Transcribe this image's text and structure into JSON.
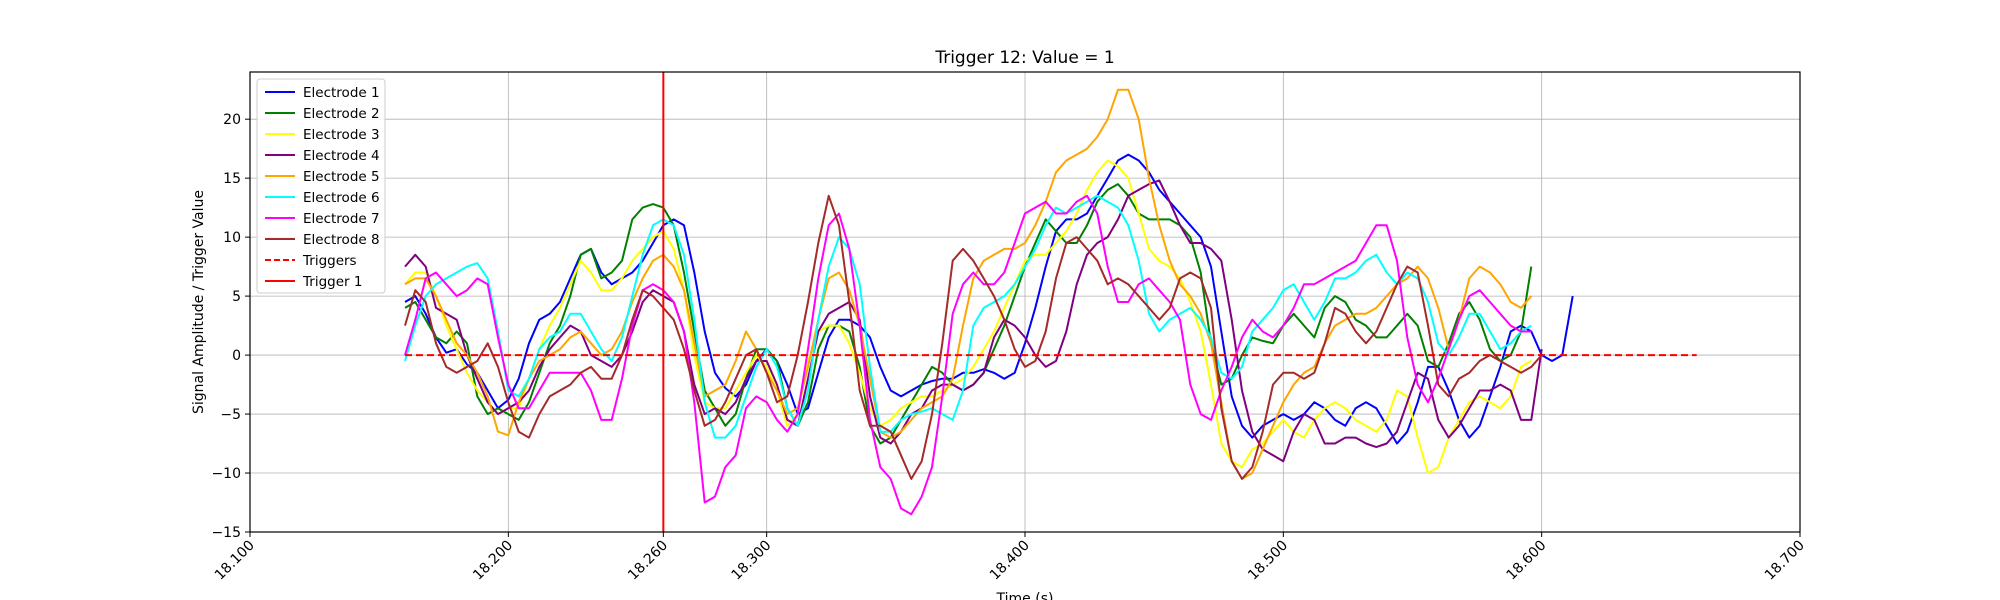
{
  "chart_data": {
    "type": "line",
    "title": "Trigger 12: Value = 1",
    "xlabel": "Time (s)",
    "ylabel": "Signal Amplitude / Trigger Value",
    "xlim": [
      18.1,
      18.7
    ],
    "ylim": [
      -15,
      24
    ],
    "x_ticks": [
      18.1,
      18.2,
      18.26,
      18.3,
      18.4,
      18.5,
      18.6,
      18.7
    ],
    "x_tick_labels": [
      "18.100",
      "18.200",
      "18.260",
      "18.300",
      "18.400",
      "18.500",
      "18.600",
      "18.700"
    ],
    "y_ticks": [
      -15,
      -10,
      -5,
      0,
      5,
      10,
      15,
      20
    ],
    "y_tick_labels": [
      "−15",
      "−10",
      "−5",
      "0",
      "5",
      "10",
      "15",
      "20"
    ],
    "grid": true,
    "legend_position": "upper-left",
    "x_start": 18.16,
    "x_step": 0.004,
    "series": [
      {
        "name": "Electrode 1",
        "color": "#0000ff",
        "values": [
          4.5,
          5.0,
          3.5,
          1.5,
          0.2,
          0.5,
          -0.8,
          -1.5,
          -3.0,
          -4.5,
          -3.8,
          -2.0,
          1.0,
          3.0,
          3.5,
          4.5,
          6.5,
          8.5,
          9.0,
          7.0,
          6.0,
          6.5,
          7.0,
          8.0,
          9.5,
          11.0,
          11.5,
          11.0,
          7.0,
          2.0,
          -1.5,
          -2.8,
          -3.5,
          -2.5,
          -0.5,
          0.5,
          -0.5,
          -2.5,
          -5.0,
          -4.5,
          -1.5,
          1.5,
          3.0,
          3.0,
          2.5,
          1.5,
          -1.0,
          -3.0,
          -3.5,
          -3.0,
          -2.5,
          -2.2,
          -2.0,
          -2.0,
          -1.5,
          -1.5,
          -1.2,
          -1.5,
          -2.0,
          -1.5,
          1.0,
          4.0,
          7.5,
          10.5,
          11.5,
          11.5,
          12.0,
          13.5,
          15.0,
          16.5,
          17.0,
          16.5,
          15.5,
          14.0,
          13.0,
          12.0,
          11.0,
          10.0,
          7.5,
          2.0,
          -3.5,
          -6.0,
          -7.0,
          -6.0,
          -5.5,
          -5.0,
          -5.5,
          -5.0,
          -4.0,
          -4.5,
          -5.5,
          -6.0,
          -4.5,
          -4.0,
          -4.5,
          -6.0,
          -7.5,
          -6.5,
          -4.0,
          -1.0,
          -1.0,
          -3.0,
          -5.5,
          -7.0,
          -6.0,
          -3.5,
          -1.0,
          2.0,
          2.5,
          2.0,
          0.0,
          -0.5,
          0.0,
          5.0
        ]
      },
      {
        "name": "Electrode 2",
        "color": "#008000",
        "values": [
          4.0,
          4.5,
          3.0,
          1.5,
          1.0,
          2.0,
          1.0,
          -3.5,
          -5.0,
          -4.5,
          -5.0,
          -5.5,
          -4.0,
          -1.5,
          1.0,
          2.5,
          5.0,
          8.5,
          9.0,
          6.5,
          7.0,
          8.0,
          11.5,
          12.5,
          12.8,
          12.5,
          11.0,
          7.0,
          2.0,
          -3.0,
          -4.5,
          -6.0,
          -5.0,
          -2.0,
          0.5,
          0.5,
          -0.5,
          -4.5,
          -6.0,
          -4.0,
          0.5,
          2.5,
          2.5,
          2.0,
          -1.0,
          -6.0,
          -7.5,
          -7.0,
          -5.5,
          -4.0,
          -2.5,
          -1.0,
          -1.5,
          -2.5,
          -3.0,
          -2.5,
          -1.5,
          0.5,
          2.5,
          5.0,
          7.5,
          9.5,
          11.5,
          10.5,
          9.5,
          9.5,
          11.0,
          13.0,
          14.0,
          14.5,
          13.5,
          12.0,
          11.5,
          11.5,
          11.5,
          11.0,
          10.0,
          7.0,
          1.0,
          -2.5,
          -2.0,
          0.0,
          1.5,
          1.2,
          1.0,
          2.5,
          3.5,
          2.5,
          1.5,
          4.0,
          5.0,
          4.5,
          3.0,
          2.5,
          1.5,
          1.5,
          2.5,
          3.5,
          2.5,
          -0.5,
          -1.0,
          1.0,
          3.5,
          4.5,
          3.0,
          0.5,
          -0.5,
          0.0,
          2.0,
          7.5
        ]
      },
      {
        "name": "Electrode 3",
        "color": "#ffff00",
        "values": [
          6.0,
          7.0,
          7.0,
          5.0,
          2.5,
          0.5,
          -1.5,
          -3.0,
          -4.0,
          -5.0,
          -4.5,
          -4.5,
          -2.0,
          0.5,
          2.5,
          4.0,
          6.0,
          8.0,
          7.0,
          5.5,
          5.5,
          6.5,
          8.0,
          9.0,
          10.0,
          10.5,
          9.0,
          5.5,
          0.0,
          -4.0,
          -4.5,
          -4.5,
          -3.0,
          -1.5,
          0.0,
          -1.0,
          -3.0,
          -6.0,
          -5.0,
          -0.5,
          2.0,
          2.5,
          2.5,
          1.0,
          -1.5,
          -4.5,
          -6.0,
          -5.5,
          -4.5,
          -4.0,
          -3.5,
          -3.5,
          -3.0,
          -2.5,
          -2.0,
          -1.0,
          0.5,
          2.0,
          4.0,
          6.0,
          8.0,
          8.5,
          8.5,
          9.5,
          10.5,
          12.0,
          14.0,
          15.5,
          16.5,
          16.0,
          15.0,
          12.0,
          9.0,
          8.0,
          7.5,
          6.5,
          4.5,
          2.0,
          -2.5,
          -7.5,
          -9.0,
          -9.5,
          -8.0,
          -7.5,
          -6.5,
          -5.5,
          -6.5,
          -7.0,
          -5.5,
          -4.5,
          -4.0,
          -4.5,
          -5.5,
          -6.0,
          -6.5,
          -5.5,
          -3.0,
          -3.5,
          -7.0,
          -10.0,
          -9.5,
          -7.0,
          -5.5,
          -4.0,
          -3.5,
          -4.0,
          -4.5,
          -3.5,
          -1.0,
          -0.5
        ]
      },
      {
        "name": "Electrode 4",
        "color": "#800080",
        "values": [
          7.5,
          8.5,
          7.5,
          4.0,
          3.5,
          3.0,
          0.0,
          -2.0,
          -4.0,
          -5.0,
          -4.5,
          -4.0,
          -3.0,
          -1.0,
          0.5,
          1.5,
          2.5,
          2.0,
          0.0,
          -0.5,
          -1.0,
          0.0,
          2.0,
          4.5,
          5.5,
          5.0,
          4.5,
          2.0,
          -2.5,
          -5.0,
          -4.5,
          -5.0,
          -4.0,
          -2.0,
          -0.5,
          -0.5,
          -2.5,
          -5.5,
          -6.0,
          -2.0,
          2.0,
          3.5,
          4.0,
          4.5,
          3.0,
          -3.5,
          -7.0,
          -7.5,
          -6.5,
          -5.0,
          -4.5,
          -3.0,
          -2.5,
          -2.5,
          -3.0,
          -2.5,
          -1.5,
          1.5,
          3.0,
          2.5,
          1.5,
          0.0,
          -1.0,
          -0.5,
          2.0,
          6.0,
          8.5,
          9.5,
          10.0,
          11.5,
          13.5,
          14.0,
          14.5,
          14.8,
          13.0,
          11.0,
          9.5,
          9.5,
          9.0,
          8.0,
          3.0,
          -3.0,
          -6.5,
          -8.0,
          -8.5,
          -9.0,
          -6.5,
          -5.0,
          -5.5,
          -7.5,
          -7.5,
          -7.0,
          -7.0,
          -7.5,
          -7.8,
          -7.5,
          -6.5,
          -4.0,
          -1.5,
          -2.0,
          -5.5,
          -7.0,
          -6.0,
          -4.5,
          -3.0,
          -3.0,
          -2.5,
          -3.0,
          -5.5,
          -5.5,
          0.5
        ]
      },
      {
        "name": "Electrode 5",
        "color": "#ffa500",
        "values": [
          6.0,
          6.5,
          6.5,
          5.0,
          3.0,
          1.0,
          0.0,
          -1.5,
          -3.5,
          -6.5,
          -6.8,
          -4.0,
          -2.0,
          -0.5,
          0.0,
          0.5,
          1.5,
          2.0,
          1.0,
          0.0,
          0.5,
          2.0,
          4.5,
          6.5,
          8.0,
          8.5,
          7.5,
          5.5,
          1.0,
          -3.5,
          -3.0,
          -2.5,
          -0.5,
          2.0,
          0.5,
          -1.5,
          -3.0,
          -5.0,
          -4.5,
          -1.0,
          3.0,
          6.5,
          7.0,
          5.5,
          2.5,
          -2.0,
          -6.5,
          -7.0,
          -6.5,
          -5.5,
          -4.5,
          -4.0,
          -3.5,
          -2.0,
          2.5,
          6.5,
          8.0,
          8.5,
          9.0,
          9.0,
          9.5,
          11.0,
          13.0,
          15.5,
          16.5,
          17.0,
          17.5,
          18.5,
          20.0,
          22.5,
          22.5,
          20.0,
          15.0,
          11.0,
          8.0,
          6.0,
          5.0,
          3.5,
          1.0,
          -4.0,
          -9.0,
          -10.5,
          -10.0,
          -8.0,
          -6.0,
          -4.0,
          -2.5,
          -1.5,
          -1.0,
          1.0,
          2.5,
          3.0,
          3.5,
          3.5,
          4.0,
          5.0,
          6.0,
          6.5,
          7.5,
          6.5,
          4.0,
          0.5,
          3.0,
          6.5,
          7.5,
          7.0,
          6.0,
          4.5,
          4.0,
          5.0
        ]
      },
      {
        "name": "Electrode 6",
        "color": "#00ffff",
        "values": [
          -0.5,
          2.5,
          5.0,
          6.0,
          6.5,
          7.0,
          7.5,
          7.8,
          6.5,
          2.0,
          -3.0,
          -3.5,
          -2.0,
          0.5,
          1.5,
          2.0,
          3.5,
          3.5,
          2.0,
          0.5,
          -0.5,
          1.5,
          5.0,
          8.5,
          11.0,
          11.5,
          11.0,
          8.5,
          3.0,
          -4.0,
          -7.0,
          -7.0,
          -6.0,
          -3.5,
          -1.0,
          0.5,
          -1.0,
          -4.5,
          -6.0,
          -3.0,
          3.0,
          7.5,
          10.0,
          9.0,
          6.0,
          -1.0,
          -6.5,
          -6.5,
          -5.5,
          -5.0,
          -4.8,
          -4.5,
          -5.0,
          -5.5,
          -3.0,
          2.5,
          4.0,
          4.5,
          5.0,
          6.0,
          7.5,
          9.0,
          11.0,
          12.5,
          12.0,
          12.5,
          13.0,
          13.5,
          13.0,
          12.5,
          11.0,
          8.0,
          3.5,
          2.0,
          3.0,
          3.5,
          4.0,
          3.0,
          1.5,
          -1.5,
          -2.0,
          -1.0,
          2.0,
          3.0,
          4.0,
          5.5,
          6.0,
          4.5,
          3.0,
          4.5,
          6.5,
          6.5,
          7.0,
          8.0,
          8.5,
          7.0,
          6.0,
          7.0,
          6.5,
          4.5,
          1.0,
          0.0,
          1.5,
          3.5,
          3.5,
          2.0,
          0.5,
          1.0,
          2.0,
          2.5
        ]
      },
      {
        "name": "Electrode 7",
        "color": "#ff00ff",
        "values": [
          0.0,
          3.0,
          6.5,
          7.0,
          6.0,
          5.0,
          5.5,
          6.5,
          6.0,
          1.5,
          -2.5,
          -4.5,
          -4.5,
          -3.0,
          -1.5,
          -1.5,
          -1.5,
          -1.5,
          -3.0,
          -5.5,
          -5.5,
          -2.0,
          2.5,
          5.5,
          6.0,
          5.5,
          4.5,
          2.0,
          -4.0,
          -12.5,
          -12.0,
          -9.5,
          -8.5,
          -4.5,
          -3.5,
          -4.0,
          -5.5,
          -6.5,
          -5.0,
          0.5,
          6.5,
          11.0,
          12.0,
          9.0,
          2.5,
          -5.5,
          -9.5,
          -10.5,
          -13.0,
          -13.5,
          -12.0,
          -9.5,
          -3.5,
          3.5,
          6.0,
          7.0,
          6.0,
          6.0,
          7.0,
          9.5,
          12.0,
          12.5,
          13.0,
          12.0,
          12.0,
          13.0,
          13.5,
          12.0,
          7.5,
          4.5,
          4.5,
          6.0,
          6.5,
          5.5,
          4.5,
          3.0,
          -2.5,
          -5.0,
          -5.5,
          -3.0,
          -1.0,
          1.5,
          3.0,
          2.0,
          1.5,
          2.5,
          4.0,
          6.0,
          6.0,
          6.5,
          7.0,
          7.5,
          8.0,
          9.5,
          11.0,
          11.0,
          8.0,
          1.5,
          -2.5,
          -4.0,
          -2.0,
          0.5,
          3.0,
          5.0,
          5.5,
          4.5,
          3.5,
          2.5,
          2.0,
          2.0
        ]
      },
      {
        "name": "Electrode 8",
        "color": "#a52a2a",
        "values": [
          2.5,
          5.5,
          4.5,
          1.0,
          -1.0,
          -1.5,
          -1.0,
          -0.5,
          1.0,
          -1.0,
          -4.0,
          -6.5,
          -7.0,
          -5.0,
          -3.5,
          -3.0,
          -2.5,
          -1.5,
          -1.0,
          -2.0,
          -2.0,
          0.0,
          3.0,
          5.5,
          5.0,
          4.0,
          3.0,
          0.5,
          -3.0,
          -6.0,
          -5.5,
          -4.0,
          -2.0,
          0.0,
          0.5,
          -1.5,
          -4.0,
          -3.5,
          0.0,
          4.5,
          9.5,
          13.5,
          11.0,
          4.5,
          -3.0,
          -6.0,
          -6.0,
          -6.5,
          -8.5,
          -10.5,
          -9.0,
          -5.0,
          1.0,
          8.0,
          9.0,
          8.0,
          6.5,
          5.0,
          3.0,
          0.5,
          -1.0,
          -0.5,
          2.0,
          6.5,
          9.5,
          10.0,
          9.0,
          8.0,
          6.0,
          6.5,
          6.0,
          5.0,
          4.0,
          3.0,
          4.0,
          6.5,
          7.0,
          6.5,
          4.0,
          -4.5,
          -9.0,
          -10.5,
          -9.5,
          -6.5,
          -2.5,
          -1.5,
          -1.5,
          -2.0,
          -1.5,
          1.0,
          4.0,
          3.5,
          2.0,
          1.0,
          2.0,
          4.0,
          6.0,
          7.5,
          7.0,
          2.5,
          -2.5,
          -3.5,
          -2.0,
          -1.5,
          -0.5,
          0.0,
          -0.5,
          -1.0,
          -1.5,
          -1.0,
          0.0
        ]
      },
      {
        "name": "Triggers",
        "color": "#ff0000",
        "dashed": true,
        "x_from": 18.16,
        "x_to": 18.66,
        "value": 0
      },
      {
        "name": "Trigger 1",
        "color": "#ff0000",
        "vertical": true,
        "x": 18.26
      }
    ]
  }
}
